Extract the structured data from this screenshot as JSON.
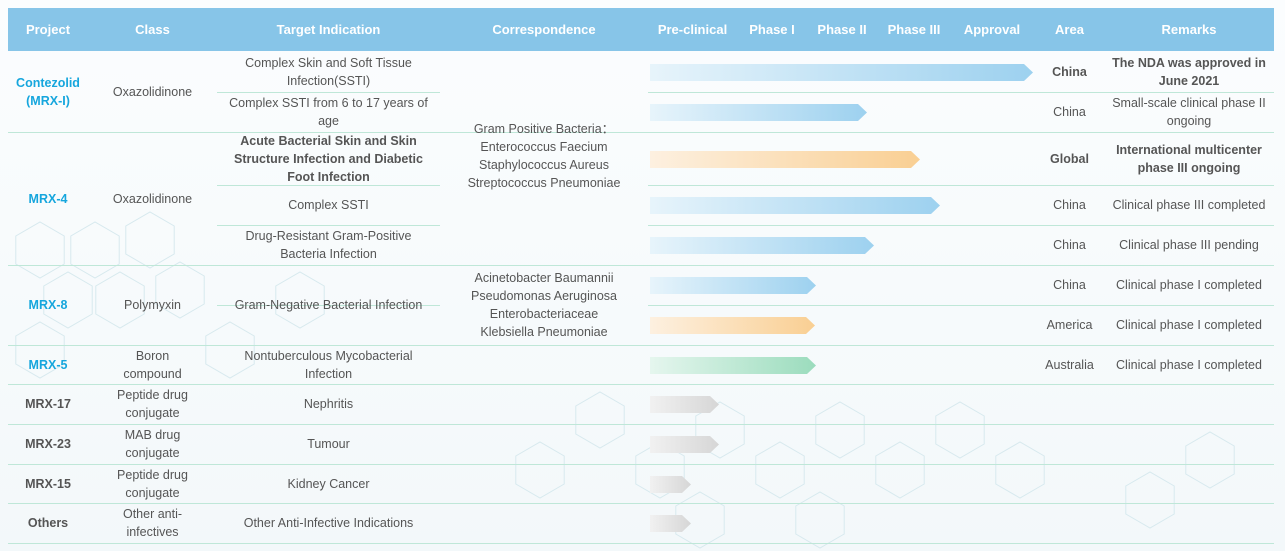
{
  "header": [
    "Project",
    "Class",
    "Target Indication",
    "Correspondence",
    "Pre-clinical",
    "Phase I",
    "Phase II",
    "Phase III",
    "Approval",
    "Area",
    "Remarks"
  ],
  "projects": [
    {
      "name": "Contezolid (MRX-I)",
      "cls": "Oxazolidinone",
      "accent": true
    },
    {
      "name": "MRX-4",
      "cls": "Oxazolidinone",
      "accent": true
    },
    {
      "name": "MRX-8",
      "cls": "Polymyxin",
      "accent": true
    },
    {
      "name": "MRX-5",
      "cls": "Boron compound",
      "accent": true
    },
    {
      "name": "MRX-17",
      "cls": "Peptide drug conjugate",
      "accent": false
    },
    {
      "name": "MRX-23",
      "cls": "MAB drug conjugate",
      "accent": false
    },
    {
      "name": "MRX-15",
      "cls": "Peptide drug conjugate",
      "accent": false
    },
    {
      "name": "Others",
      "cls": "Other anti-infectives",
      "accent": false
    }
  ],
  "correspondence": [
    "Gram Positive Bacteria：\nEnterococcus Faecium\nStaphylococcus Aureus\nStreptococcus Pneumoniae",
    "Acinetobacter Baumannii\nPseudomonas Aeruginosa\nEnterobacteriaceae\nKlebsiella Pneumoniae"
  ],
  "rows": [
    {
      "indication": "Complex Skin and Soft Tissue Infection(SSTI)",
      "area": "China",
      "remark": "The NDA was approved in June 2021",
      "bold": true,
      "color": "blue",
      "progress": 1.0,
      "ind_bold": false
    },
    {
      "indication": "Complex SSTI from 6 to 17 years of age",
      "area": "China",
      "remark": "Small-scale clinical phase II ongoing",
      "bold": false,
      "color": "blue",
      "progress": 0.566,
      "ind_bold": false
    },
    {
      "indication": "Acute Bacterial Skin and Skin Structure Infection and Diabetic Foot Infection",
      "area": "Global",
      "remark": "International multicenter phase III ongoing",
      "bold": true,
      "color": "orange",
      "progress": 0.705,
      "ind_bold": true
    },
    {
      "indication": "Complex SSTI",
      "area": "China",
      "remark": "Clinical phase III completed",
      "bold": false,
      "color": "blue",
      "progress": 0.757,
      "ind_bold": false
    },
    {
      "indication": "Drug-Resistant Gram-Positive Bacteria Infection",
      "area": "China",
      "remark": "Clinical phase III pending",
      "bold": false,
      "color": "blue",
      "progress": 0.585,
      "ind_bold": false
    },
    {
      "indication": "Gram-Negative Bacterial Infection",
      "area": "China",
      "remark": "Clinical phase I completed",
      "bold": false,
      "color": "blue",
      "progress": 0.433,
      "ind_bold": false
    },
    {
      "indication": "",
      "area": "America",
      "remark": "Clinical phase I completed",
      "bold": false,
      "color": "orange",
      "progress": 0.43,
      "ind_bold": false
    },
    {
      "indication": "Nontuberculous Mycobacterial Infection",
      "area": "Australia",
      "remark": "Clinical phase I completed",
      "bold": false,
      "color": "green",
      "progress": 0.433,
      "ind_bold": false
    },
    {
      "indication": "Nephritis",
      "area": "",
      "remark": "",
      "bold": false,
      "color": "gray",
      "progress": 0.18,
      "ind_bold": false
    },
    {
      "indication": "Tumour",
      "area": "",
      "remark": "",
      "bold": false,
      "color": "gray",
      "progress": 0.18,
      "ind_bold": false
    },
    {
      "indication": "Kidney Cancer",
      "area": "",
      "remark": "",
      "bold": false,
      "color": "gray",
      "progress": 0.107,
      "ind_bold": false
    },
    {
      "indication": "Other Anti-Infective Indications",
      "area": "",
      "remark": "",
      "bold": false,
      "color": "gray",
      "progress": 0.107,
      "ind_bold": false
    }
  ]
}
